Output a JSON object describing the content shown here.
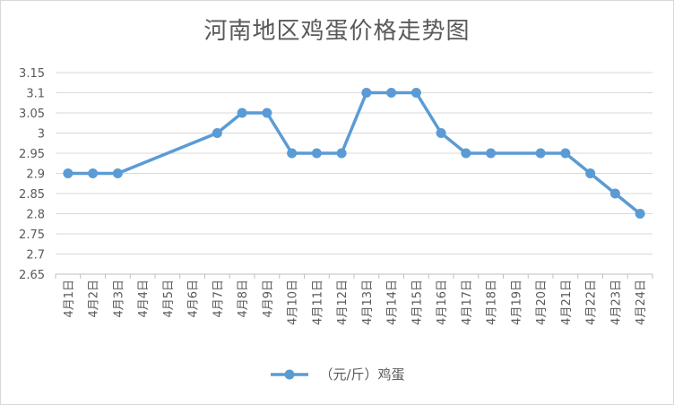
{
  "chart_data": {
    "type": "line",
    "title": "河南地区鸡蛋价格走势图",
    "xlabel": "",
    "ylabel": "",
    "categories": [
      "4月1日",
      "4月2日",
      "4月3日",
      "4月4日",
      "4月5日",
      "4月6日",
      "4月7日",
      "4月8日",
      "4月9日",
      "4月10日",
      "4月11日",
      "4月12日",
      "4月13日",
      "4月14日",
      "4月15日",
      "4月16日",
      "4月17日",
      "4月18日",
      "4月19日",
      "4月20日",
      "4月21日",
      "4月22日",
      "4月23日",
      "4月24日"
    ],
    "yticks": [
      "3.15",
      "3.1",
      "3.05",
      "3",
      "2.95",
      "2.9",
      "2.85",
      "2.8",
      "2.75",
      "2.7",
      "2.65"
    ],
    "ylim": [
      2.65,
      3.15
    ],
    "grid": true,
    "legend_position": "bottom",
    "series": [
      {
        "name": "（元/斤）鸡蛋",
        "color": "#5b9bd5",
        "values": [
          2.9,
          2.9,
          2.9,
          null,
          null,
          null,
          3.0,
          3.05,
          3.05,
          2.95,
          2.95,
          2.95,
          3.1,
          3.1,
          3.1,
          3.0,
          2.95,
          2.95,
          null,
          2.95,
          2.95,
          2.9,
          2.85,
          2.8
        ]
      }
    ]
  }
}
